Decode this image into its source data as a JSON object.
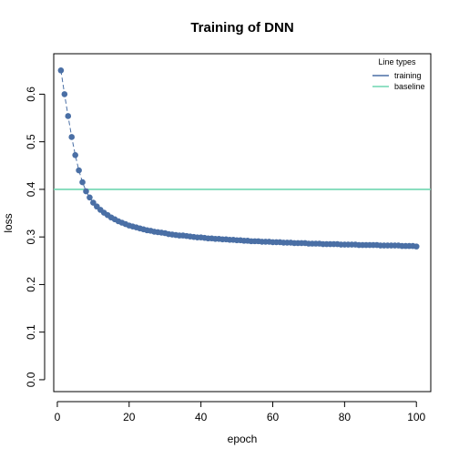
{
  "chart_data": {
    "type": "line",
    "title": "Training of DNN",
    "xlabel": "epoch",
    "ylabel": "loss",
    "xlim": [
      -1,
      104
    ],
    "ylim": [
      -0.025,
      0.685
    ],
    "xticks": [
      0,
      20,
      40,
      60,
      80,
      100
    ],
    "yticks": [
      0.0,
      0.1,
      0.2,
      0.3,
      0.4,
      0.5,
      0.6
    ],
    "legend": {
      "title": "Line types",
      "placement": "top-right",
      "entries": [
        {
          "name": "training",
          "color": "#4a6fa5"
        },
        {
          "name": "baseline",
          "color": "#6fd6b0"
        }
      ]
    },
    "series": [
      {
        "name": "training",
        "style": "points+dashed-line",
        "color": "#4a6fa5",
        "x": [
          1,
          2,
          3,
          4,
          5,
          6,
          7,
          8,
          9,
          10,
          11,
          12,
          13,
          14,
          15,
          16,
          17,
          18,
          19,
          20,
          21,
          22,
          23,
          24,
          25,
          26,
          27,
          28,
          29,
          30,
          31,
          32,
          33,
          34,
          35,
          36,
          37,
          38,
          39,
          40,
          41,
          42,
          43,
          44,
          45,
          46,
          47,
          48,
          49,
          50,
          51,
          52,
          53,
          54,
          55,
          56,
          57,
          58,
          59,
          60,
          61,
          62,
          63,
          64,
          65,
          66,
          67,
          68,
          69,
          70,
          71,
          72,
          73,
          74,
          75,
          76,
          77,
          78,
          79,
          80,
          81,
          82,
          83,
          84,
          85,
          86,
          87,
          88,
          89,
          90,
          91,
          92,
          93,
          94,
          95,
          96,
          97,
          98,
          99,
          100
        ],
        "y": [
          0.65,
          0.6,
          0.554,
          0.51,
          0.472,
          0.44,
          0.415,
          0.396,
          0.383,
          0.372,
          0.364,
          0.357,
          0.351,
          0.346,
          0.341,
          0.337,
          0.333,
          0.33,
          0.327,
          0.324,
          0.322,
          0.32,
          0.318,
          0.316,
          0.314,
          0.313,
          0.311,
          0.31,
          0.309,
          0.308,
          0.306,
          0.305,
          0.304,
          0.303,
          0.303,
          0.302,
          0.301,
          0.3,
          0.299,
          0.299,
          0.298,
          0.297,
          0.297,
          0.296,
          0.296,
          0.295,
          0.295,
          0.294,
          0.294,
          0.293,
          0.293,
          0.292,
          0.292,
          0.291,
          0.291,
          0.291,
          0.29,
          0.29,
          0.29,
          0.289,
          0.289,
          0.289,
          0.288,
          0.288,
          0.288,
          0.287,
          0.287,
          0.287,
          0.287,
          0.286,
          0.286,
          0.286,
          0.286,
          0.285,
          0.285,
          0.285,
          0.285,
          0.285,
          0.284,
          0.284,
          0.284,
          0.284,
          0.284,
          0.283,
          0.283,
          0.283,
          0.283,
          0.283,
          0.283,
          0.282,
          0.282,
          0.282,
          0.282,
          0.282,
          0.282,
          0.281,
          0.281,
          0.281,
          0.281,
          0.28
        ]
      },
      {
        "name": "baseline",
        "style": "horizontal-line",
        "color": "#6fd6b0",
        "y": 0.4
      }
    ]
  }
}
